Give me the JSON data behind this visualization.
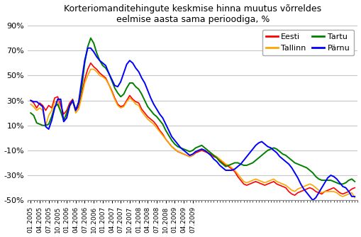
{
  "title": "Korteriomanditehingute keskmise hinna muutus võrreldes\neelmise aasta sama perioodiga, %",
  "ylim": [
    -0.5,
    0.9
  ],
  "yticks": [
    -0.5,
    -0.3,
    -0.1,
    0.1,
    0.3,
    0.5,
    0.7,
    0.9
  ],
  "colors": {
    "Eesti": "#FF0000",
    "Tallinn": "#FFA500",
    "Tartu": "#008000",
    "Parnu": "#0000FF"
  },
  "background": "#FFFFFF",
  "grid_color": "#C8C8C8",
  "xtick_labels": [
    "01.2005",
    "04.2005",
    "07.2005",
    "10.2005",
    "01.2006",
    "04.2006",
    "07.2006",
    "10.2006",
    "01.2007",
    "04.2007",
    "07.2007",
    "10.2007",
    "01.2008",
    "04.2008",
    "07.2008",
    "10.2008",
    "01.2009",
    "04.2009",
    "07.2009"
  ],
  "legend_labels": [
    "Eesti",
    "Tallinn",
    "Tartu",
    "Pärnu"
  ],
  "Eesti": [
    0.3,
    0.28,
    0.24,
    0.28,
    0.26,
    0.22,
    0.26,
    0.24,
    0.32,
    0.33,
    0.26,
    0.19,
    0.22,
    0.28,
    0.31,
    0.22,
    0.25,
    0.35,
    0.47,
    0.55,
    0.6,
    0.57,
    0.55,
    0.52,
    0.5,
    0.48,
    0.43,
    0.38,
    0.32,
    0.27,
    0.25,
    0.26,
    0.3,
    0.34,
    0.31,
    0.29,
    0.28,
    0.23,
    0.2,
    0.17,
    0.15,
    0.13,
    0.1,
    0.06,
    0.03,
    -0.01,
    -0.04,
    -0.07,
    -0.09,
    -0.11,
    -0.12,
    -0.13,
    -0.14,
    -0.15,
    -0.14,
    -0.12,
    -0.11,
    -0.1,
    -0.11,
    -0.12,
    -0.13,
    -0.15,
    -0.16,
    -0.18,
    -0.2,
    -0.22,
    -0.23,
    -0.25,
    -0.27,
    -0.31,
    -0.34,
    -0.37,
    -0.38,
    -0.37,
    -0.36,
    -0.35,
    -0.36,
    -0.37,
    -0.38,
    -0.37,
    -0.36,
    -0.35,
    -0.37,
    -0.38,
    -0.39,
    -0.4,
    -0.43,
    -0.45,
    -0.46,
    -0.44,
    -0.43,
    -0.42,
    -0.41,
    -0.4,
    -0.41,
    -0.43,
    -0.44,
    -0.45,
    -0.43,
    -0.42,
    -0.41,
    -0.4,
    -0.42,
    -0.44,
    -0.45,
    -0.44,
    -0.43,
    -0.41,
    -0.4
  ],
  "Tallinn": [
    0.27,
    0.25,
    0.22,
    0.24,
    0.22,
    0.1,
    0.18,
    0.22,
    0.29,
    0.29,
    0.22,
    0.15,
    0.18,
    0.25,
    0.29,
    0.2,
    0.23,
    0.33,
    0.44,
    0.5,
    0.55,
    0.55,
    0.53,
    0.5,
    0.49,
    0.47,
    0.43,
    0.37,
    0.31,
    0.26,
    0.24,
    0.25,
    0.29,
    0.32,
    0.3,
    0.27,
    0.26,
    0.21,
    0.18,
    0.15,
    0.13,
    0.11,
    0.08,
    0.05,
    0.02,
    -0.01,
    -0.04,
    -0.07,
    -0.09,
    -0.11,
    -0.12,
    -0.13,
    -0.14,
    -0.15,
    -0.14,
    -0.11,
    -0.1,
    -0.09,
    -0.1,
    -0.11,
    -0.12,
    -0.14,
    -0.15,
    -0.17,
    -0.19,
    -0.21,
    -0.22,
    -0.24,
    -0.26,
    -0.29,
    -0.32,
    -0.35,
    -0.36,
    -0.35,
    -0.34,
    -0.33,
    -0.34,
    -0.35,
    -0.36,
    -0.35,
    -0.34,
    -0.33,
    -0.35,
    -0.36,
    -0.37,
    -0.38,
    -0.4,
    -0.42,
    -0.43,
    -0.41,
    -0.4,
    -0.39,
    -0.38,
    -0.37,
    -0.38,
    -0.4,
    -0.42,
    -0.44,
    -0.43,
    -0.43,
    -0.43,
    -0.43,
    -0.44,
    -0.46,
    -0.47,
    -0.46,
    -0.45,
    -0.44,
    -0.48
  ],
  "Tartu": [
    0.2,
    0.18,
    0.12,
    0.11,
    0.1,
    0.1,
    0.11,
    0.17,
    0.25,
    0.27,
    0.21,
    0.14,
    0.2,
    0.26,
    0.3,
    0.22,
    0.28,
    0.4,
    0.6,
    0.73,
    0.8,
    0.76,
    0.68,
    0.62,
    0.58,
    0.56,
    0.52,
    0.46,
    0.4,
    0.36,
    0.33,
    0.35,
    0.4,
    0.44,
    0.44,
    0.41,
    0.39,
    0.35,
    0.3,
    0.25,
    0.22,
    0.19,
    0.17,
    0.14,
    0.11,
    0.06,
    0.02,
    -0.02,
    -0.05,
    -0.07,
    -0.08,
    -0.09,
    -0.1,
    -0.11,
    -0.1,
    -0.08,
    -0.07,
    -0.06,
    -0.08,
    -0.1,
    -0.12,
    -0.14,
    -0.16,
    -0.19,
    -0.21,
    -0.23,
    -0.22,
    -0.21,
    -0.2,
    -0.2,
    -0.21,
    -0.22,
    -0.22,
    -0.21,
    -0.2,
    -0.18,
    -0.16,
    -0.14,
    -0.12,
    -0.1,
    -0.09,
    -0.08,
    -0.09,
    -0.11,
    -0.13,
    -0.14,
    -0.16,
    -0.18,
    -0.2,
    -0.21,
    -0.22,
    -0.23,
    -0.24,
    -0.26,
    -0.28,
    -0.31,
    -0.33,
    -0.34,
    -0.34,
    -0.34,
    -0.34,
    -0.35,
    -0.36,
    -0.37,
    -0.37,
    -0.36,
    -0.34,
    -0.33,
    -0.35
  ],
  "Parnu": [
    0.3,
    0.29,
    0.29,
    0.27,
    0.25,
    0.09,
    0.07,
    0.14,
    0.24,
    0.31,
    0.31,
    0.13,
    0.16,
    0.26,
    0.3,
    0.22,
    0.29,
    0.46,
    0.62,
    0.72,
    0.72,
    0.69,
    0.65,
    0.62,
    0.6,
    0.58,
    0.52,
    0.47,
    0.42,
    0.41,
    0.45,
    0.52,
    0.59,
    0.62,
    0.6,
    0.56,
    0.53,
    0.48,
    0.44,
    0.38,
    0.32,
    0.27,
    0.23,
    0.19,
    0.16,
    0.11,
    0.06,
    0.01,
    -0.02,
    -0.05,
    -0.08,
    -0.1,
    -0.12,
    -0.14,
    -0.13,
    -0.11,
    -0.1,
    -0.09,
    -0.1,
    -0.12,
    -0.14,
    -0.17,
    -0.19,
    -0.22,
    -0.24,
    -0.26,
    -0.26,
    -0.26,
    -0.25,
    -0.23,
    -0.21,
    -0.18,
    -0.15,
    -0.12,
    -0.09,
    -0.06,
    -0.04,
    -0.03,
    -0.05,
    -0.07,
    -0.08,
    -0.1,
    -0.12,
    -0.15,
    -0.17,
    -0.19,
    -0.21,
    -0.24,
    -0.28,
    -0.32,
    -0.37,
    -0.41,
    -0.44,
    -0.47,
    -0.5,
    -0.48,
    -0.44,
    -0.4,
    -0.36,
    -0.32,
    -0.3,
    -0.31,
    -0.33,
    -0.36,
    -0.39,
    -0.4,
    -0.43,
    -0.47,
    -0.47
  ]
}
